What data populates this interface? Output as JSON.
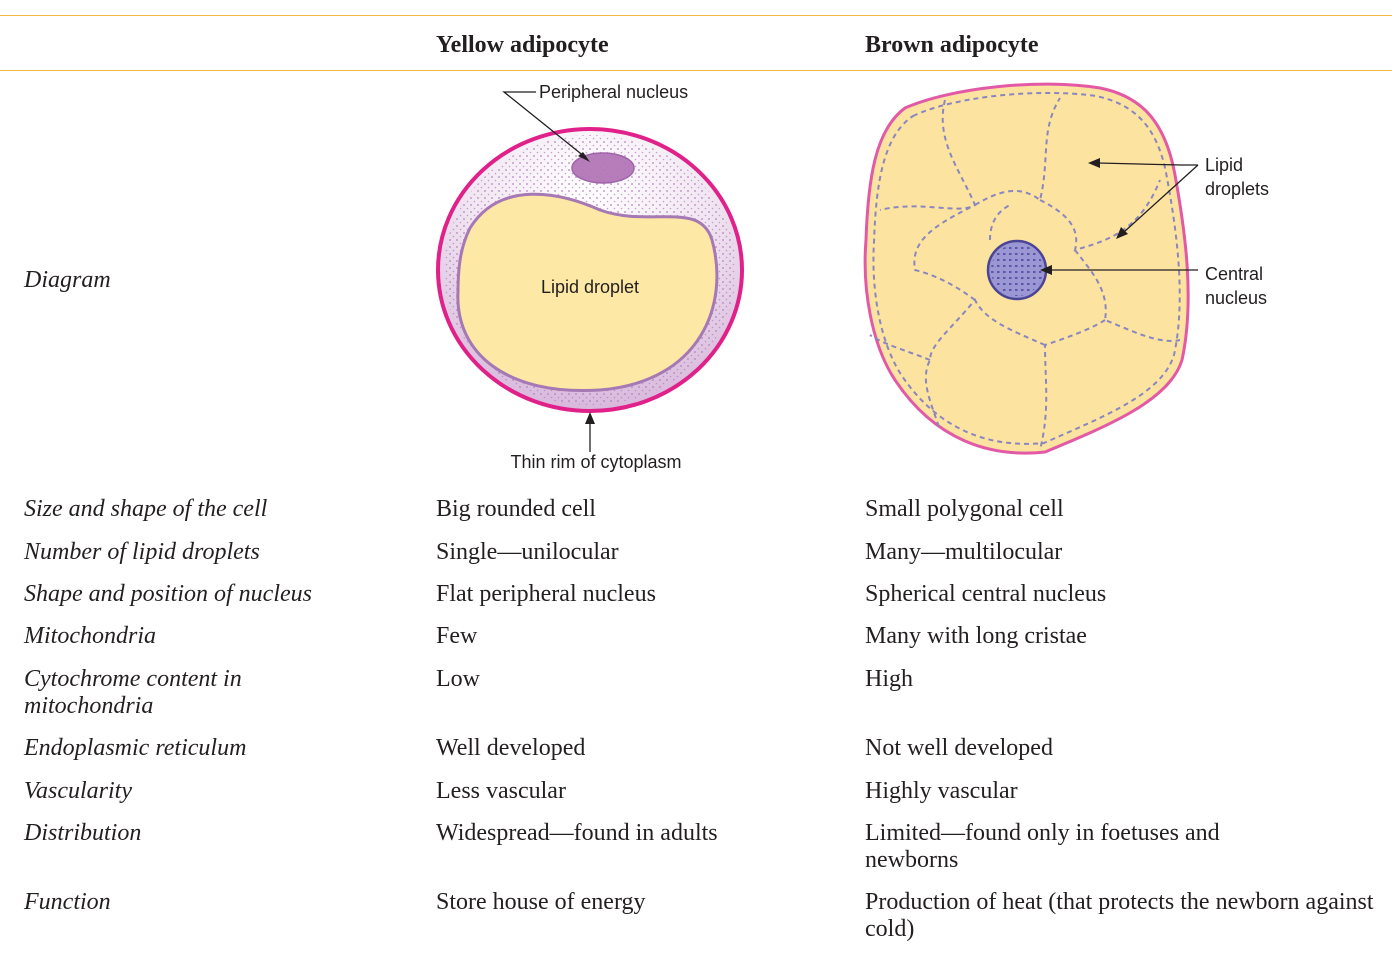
{
  "header": {
    "columns": [
      "Yellow adipocyte",
      "Brown adipocyte"
    ]
  },
  "diagram": {
    "label": "Diagram",
    "yellow": {
      "nucleus": "Peripheral nucleus",
      "droplet": "Lipid droplet",
      "rim": "Thin rim of cytoplasm"
    },
    "brown": {
      "droplets": "Lipid droplets",
      "nucleus": "Central nucleus"
    }
  },
  "table": {
    "rows": [
      [
        "Size and shape of the cell",
        "Big rounded cell",
        "Small polygonal cell"
      ],
      [
        "Number of lipid droplets",
        "Single—unilocular",
        "Many—multilocular"
      ],
      [
        "Shape and position of nucleus",
        "Flat peripheral nucleus",
        "Spherical central nucleus"
      ],
      [
        "Mitochondria",
        "Few",
        "Many with long cristae"
      ],
      [
        "Cytochrome content in mitochondria",
        "Low",
        "High"
      ],
      [
        "Endoplasmic reticulum",
        "Well developed",
        "Not well developed"
      ],
      [
        "Vascularity",
        "Less vascular",
        "Highly vascular"
      ],
      [
        "Distribution",
        "Widespread—found in adults",
        "Limited—found only in foetuses and newborns"
      ],
      [
        "Function",
        "Store house of energy",
        "Production of heat (that protects the newborn against cold)"
      ]
    ]
  }
}
